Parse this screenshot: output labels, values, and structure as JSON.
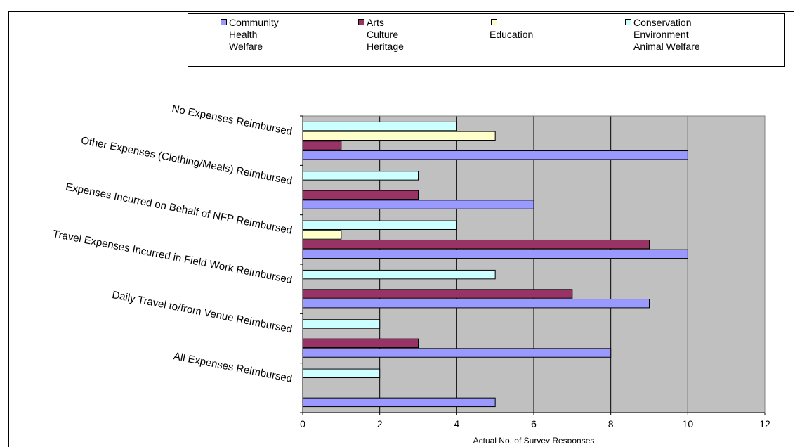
{
  "chart_data": {
    "type": "bar",
    "orientation": "horizontal",
    "title": "",
    "xlabel": "Actual No. of Survey Responses",
    "ylabel": "",
    "xlim": [
      0,
      12
    ],
    "xticks": [
      "0",
      "2",
      "4",
      "6",
      "8",
      "10",
      "12"
    ],
    "grid": true,
    "legend_position": "top",
    "categories": [
      "All Expenses Reimbursed",
      "Daily Travel to/from Venue Reimbursed",
      "Travel Expenses Incurred in Field Work  Reimbursed",
      "Expenses Incurred on Behalf of NFP Reimbursed",
      "Other Expenses  (Clothing/Meals) Reimbursed",
      "No Expenses Reimbursed"
    ],
    "series": [
      {
        "name": "Community\nHealth\nWelfare",
        "color": "#9999ff",
        "values": [
          5,
          8,
          9,
          10,
          6,
          10
        ]
      },
      {
        "name": "Arts\nCulture\nHeritage",
        "color": "#993366",
        "values": [
          0,
          3,
          7,
          9,
          3,
          1
        ]
      },
      {
        "name": "\nEducation",
        "color": "#ffffcc",
        "values": [
          0,
          0,
          0,
          1,
          0,
          5
        ]
      },
      {
        "name": "Conservation\nEnvironment\nAnimal Welfare",
        "color": "#ccffff",
        "values": [
          2,
          2,
          5,
          4,
          3,
          4
        ]
      }
    ]
  }
}
